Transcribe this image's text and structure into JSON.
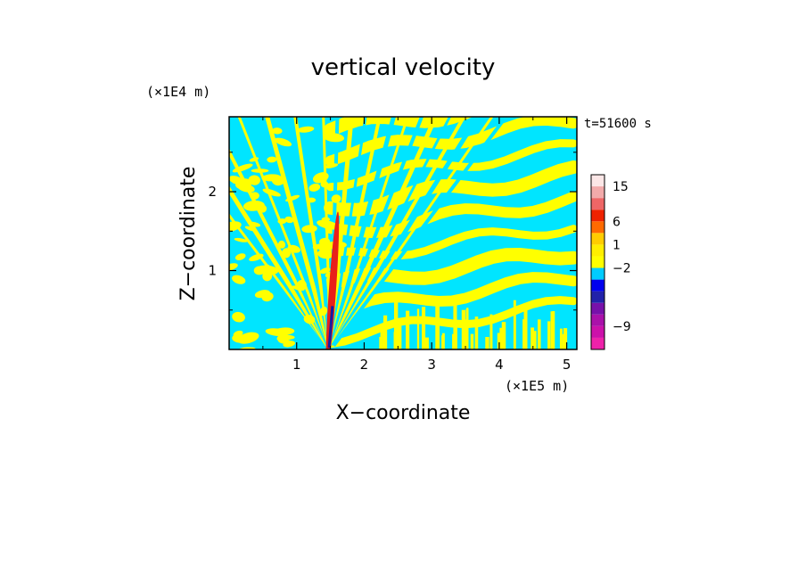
{
  "chart_data": {
    "type": "heatmap",
    "title": "vertical velocity",
    "xlabel": "X−coordinate",
    "ylabel": "Z−coordinate",
    "x_scale_label": "(×1E5 m)",
    "y_scale_label": "(×1E4 m)",
    "time_label": "t=51600 s",
    "xlim": [
      0,
      5.15
    ],
    "ylim": [
      0,
      2.95
    ],
    "x_ticks": [
      1,
      2,
      3,
      4,
      5
    ],
    "x_tick_labels": [
      "1",
      "2",
      "3",
      "4",
      "5"
    ],
    "y_ticks": [
      1,
      2
    ],
    "y_tick_labels": [
      "1",
      "2"
    ],
    "field_colors": {
      "positive_small": "#ffff00",
      "negative_small": "#00e5ff",
      "updraft_core": "#e8201a",
      "downdraft_core": "#1a1aa0"
    },
    "colorbar": {
      "levels": [
        {
          "color": "#ee22aa"
        },
        {
          "color": "#cc11aa"
        },
        {
          "color": "#aa11aa"
        },
        {
          "color": "#7711aa"
        },
        {
          "color": "#2222aa"
        },
        {
          "color": "#0000ee"
        },
        {
          "color": "#00ccff"
        },
        {
          "color": "#ffff00"
        },
        {
          "color": "#ffee00"
        },
        {
          "color": "#ffcc00"
        },
        {
          "color": "#ff6a00"
        },
        {
          "color": "#ee2200"
        },
        {
          "color": "#ee6666"
        },
        {
          "color": "#f2aaaa"
        },
        {
          "color": "#fbe6e6"
        }
      ],
      "labels": [
        {
          "value": 15,
          "text": "15"
        },
        {
          "value": 6,
          "text": "6"
        },
        {
          "value": 1,
          "text": "1"
        },
        {
          "value": -2,
          "text": "−2"
        },
        {
          "value": -9,
          "text": "−9"
        }
      ]
    }
  }
}
